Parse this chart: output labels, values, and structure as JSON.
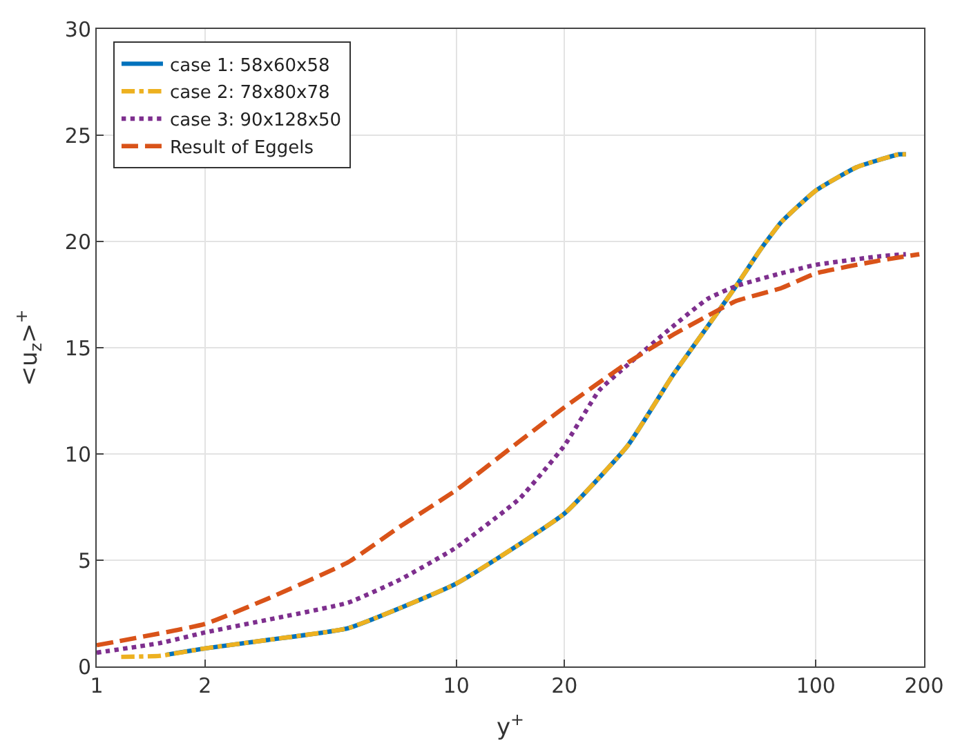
{
  "chart_data": {
    "type": "line",
    "xlabel": "y$^{+}$",
    "ylabel": "<u$_{z}$>$^{+}$",
    "log": "x",
    "xlim": [
      1,
      200
    ],
    "xticks": [
      1,
      2,
      10,
      20,
      100,
      200
    ],
    "ylim": [
      0,
      30
    ],
    "yticks": [
      0,
      5,
      10,
      15,
      20,
      25,
      30
    ],
    "grid": true,
    "legend": "top left",
    "series": [
      {
        "name": "case 1: 58x60x58",
        "color": "#0072bd",
        "line_style": "solid",
        "x": [
          1.56,
          2,
          3,
          5,
          10,
          20,
          30,
          40,
          50,
          60,
          70,
          80,
          100,
          130,
          170,
          178
        ],
        "values": [
          0.55,
          0.85,
          1.25,
          1.8,
          3.9,
          7.2,
          10.4,
          13.7,
          16.0,
          17.9,
          19.6,
          20.9,
          22.4,
          23.5,
          24.1,
          24.1
        ]
      },
      {
        "name": "case 2: 78x80x78",
        "color": "#edb120",
        "line_style": "dashdot",
        "x": [
          1.17,
          1.5,
          2,
          3,
          5,
          10,
          20,
          30,
          40,
          50,
          60,
          70,
          80,
          100,
          130,
          170,
          178
        ],
        "values": [
          0.45,
          0.5,
          0.85,
          1.25,
          1.8,
          3.9,
          7.2,
          10.4,
          13.7,
          16.0,
          17.9,
          19.6,
          20.9,
          22.4,
          23.5,
          24.1,
          24.1
        ]
      },
      {
        "name": "case 3: 90x128x50",
        "color": "#7e2f8e",
        "line_style": "dotted",
        "x": [
          1,
          1.5,
          2,
          3,
          5,
          7,
          10,
          15,
          20,
          25,
          30,
          40,
          50,
          60,
          80,
          100,
          150,
          178
        ],
        "values": [
          0.65,
          1.1,
          1.6,
          2.2,
          3.0,
          4.1,
          5.6,
          7.9,
          10.4,
          13.0,
          14.2,
          16.0,
          17.3,
          17.9,
          18.5,
          18.9,
          19.3,
          19.4
        ]
      },
      {
        "name": "Result of Eggels",
        "color": "#d95319",
        "line_style": "dashed",
        "x": [
          1,
          2,
          3,
          5,
          7,
          10,
          15,
          20,
          30,
          40,
          50,
          60,
          80,
          100,
          150,
          194
        ],
        "values": [
          1.0,
          2.0,
          3.2,
          4.9,
          6.6,
          8.3,
          10.6,
          12.2,
          14.3,
          15.6,
          16.5,
          17.2,
          17.8,
          18.5,
          19.1,
          19.4
        ]
      }
    ]
  }
}
